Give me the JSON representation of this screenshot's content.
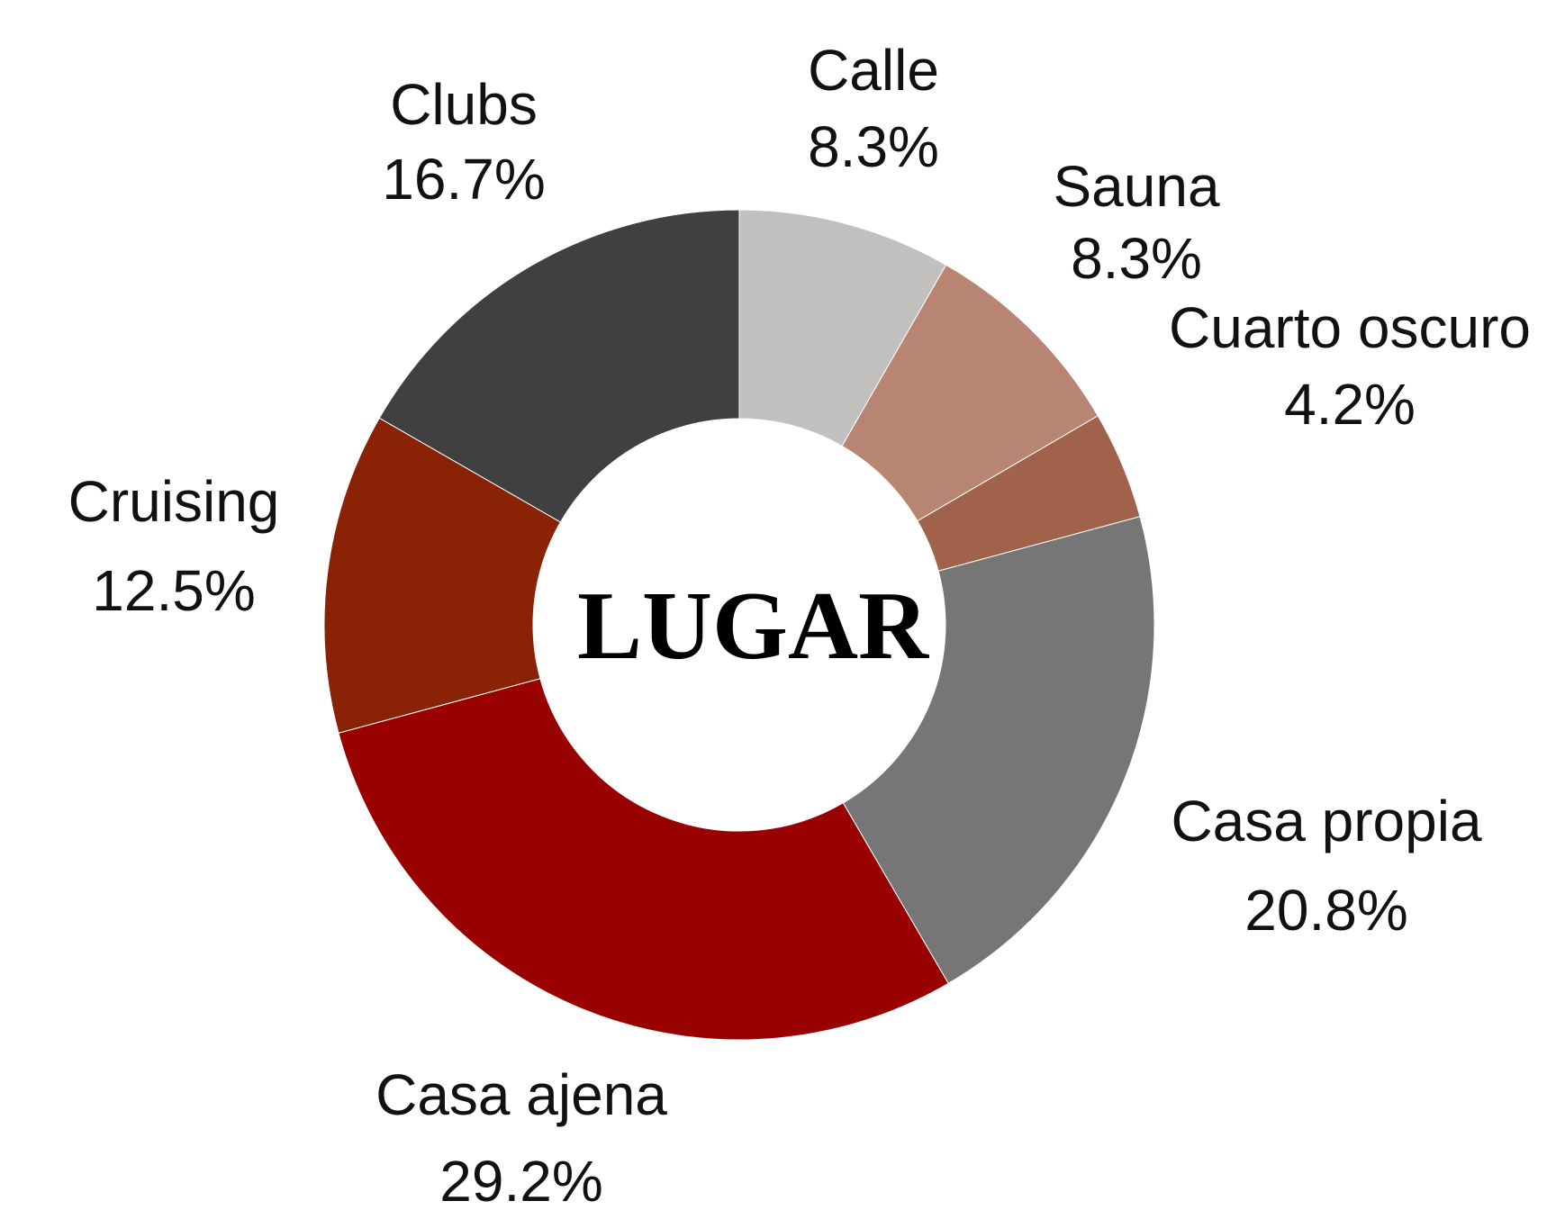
{
  "chart_data": {
    "type": "donut",
    "title": "LUGAR",
    "categories": [
      "Calle",
      "Sauna",
      "Cuarto oscuro",
      "Casa propia",
      "Casa ajena",
      "Cruising",
      "Clubs"
    ],
    "values": [
      8.3,
      8.3,
      4.2,
      20.8,
      29.2,
      12.5,
      16.7
    ],
    "value_labels": [
      "8.3%",
      "8.3%",
      "4.2%",
      "20.8%",
      "29.2%",
      "12.5%",
      "16.7%"
    ],
    "colors": [
      "#c1c0be",
      "#b88572",
      "#a0624a",
      "#767676",
      "#990000",
      "#8a2306",
      "#404040"
    ]
  }
}
